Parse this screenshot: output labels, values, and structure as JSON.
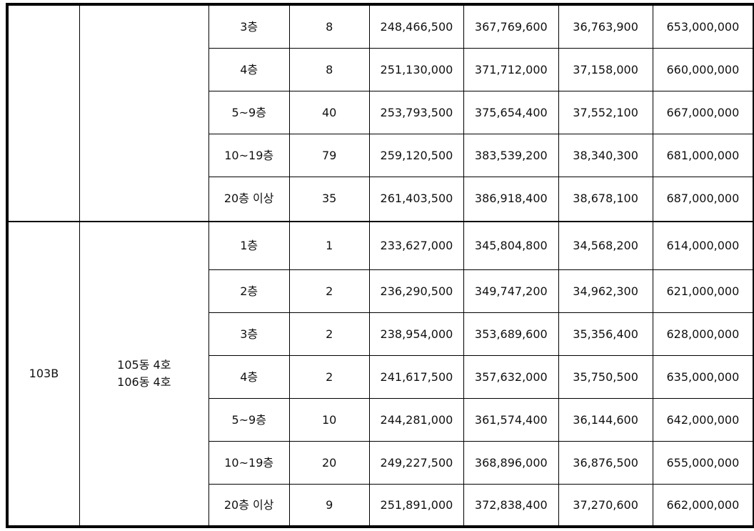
{
  "groups": [
    {
      "type": "",
      "units": "",
      "rows": [
        {
          "floor": "3층",
          "count": "8",
          "v1": "248,466,500",
          "v2": "367,769,600",
          "v3": "36,763,900",
          "total": "653,000,000"
        },
        {
          "floor": "4층",
          "count": "8",
          "v1": "251,130,000",
          "v2": "371,712,000",
          "v3": "37,158,000",
          "total": "660,000,000"
        },
        {
          "floor": "5~9층",
          "count": "40",
          "v1": "253,793,500",
          "v2": "375,654,400",
          "v3": "37,552,100",
          "total": "667,000,000"
        },
        {
          "floor": "10~19층",
          "count": "79",
          "v1": "259,120,500",
          "v2": "383,539,200",
          "v3": "38,340,300",
          "total": "681,000,000"
        },
        {
          "floor": "20층 이상",
          "count": "35",
          "v1": "261,403,500",
          "v2": "386,918,400",
          "v3": "38,678,100",
          "total": "687,000,000"
        }
      ]
    },
    {
      "type": "103B",
      "units": "105동 4호\n106동 4호",
      "rows": [
        {
          "floor": "1층",
          "count": "1",
          "v1": "233,627,000",
          "v2": "345,804,800",
          "v3": "34,568,200",
          "total": "614,000,000"
        },
        {
          "floor": "2층",
          "count": "2",
          "v1": "236,290,500",
          "v2": "349,747,200",
          "v3": "34,962,300",
          "total": "621,000,000"
        },
        {
          "floor": "3층",
          "count": "2",
          "v1": "238,954,000",
          "v2": "353,689,600",
          "v3": "35,356,400",
          "total": "628,000,000"
        },
        {
          "floor": "4층",
          "count": "2",
          "v1": "241,617,500",
          "v2": "357,632,000",
          "v3": "35,750,500",
          "total": "635,000,000"
        },
        {
          "floor": "5~9층",
          "count": "10",
          "v1": "244,281,000",
          "v2": "361,574,400",
          "v3": "36,144,600",
          "total": "642,000,000"
        },
        {
          "floor": "10~19층",
          "count": "20",
          "v1": "249,227,500",
          "v2": "368,896,000",
          "v3": "36,876,500",
          "total": "655,000,000"
        },
        {
          "floor": "20층 이상",
          "count": "9",
          "v1": "251,891,000",
          "v2": "372,838,400",
          "v3": "37,270,600",
          "total": "662,000,000"
        }
      ]
    }
  ]
}
